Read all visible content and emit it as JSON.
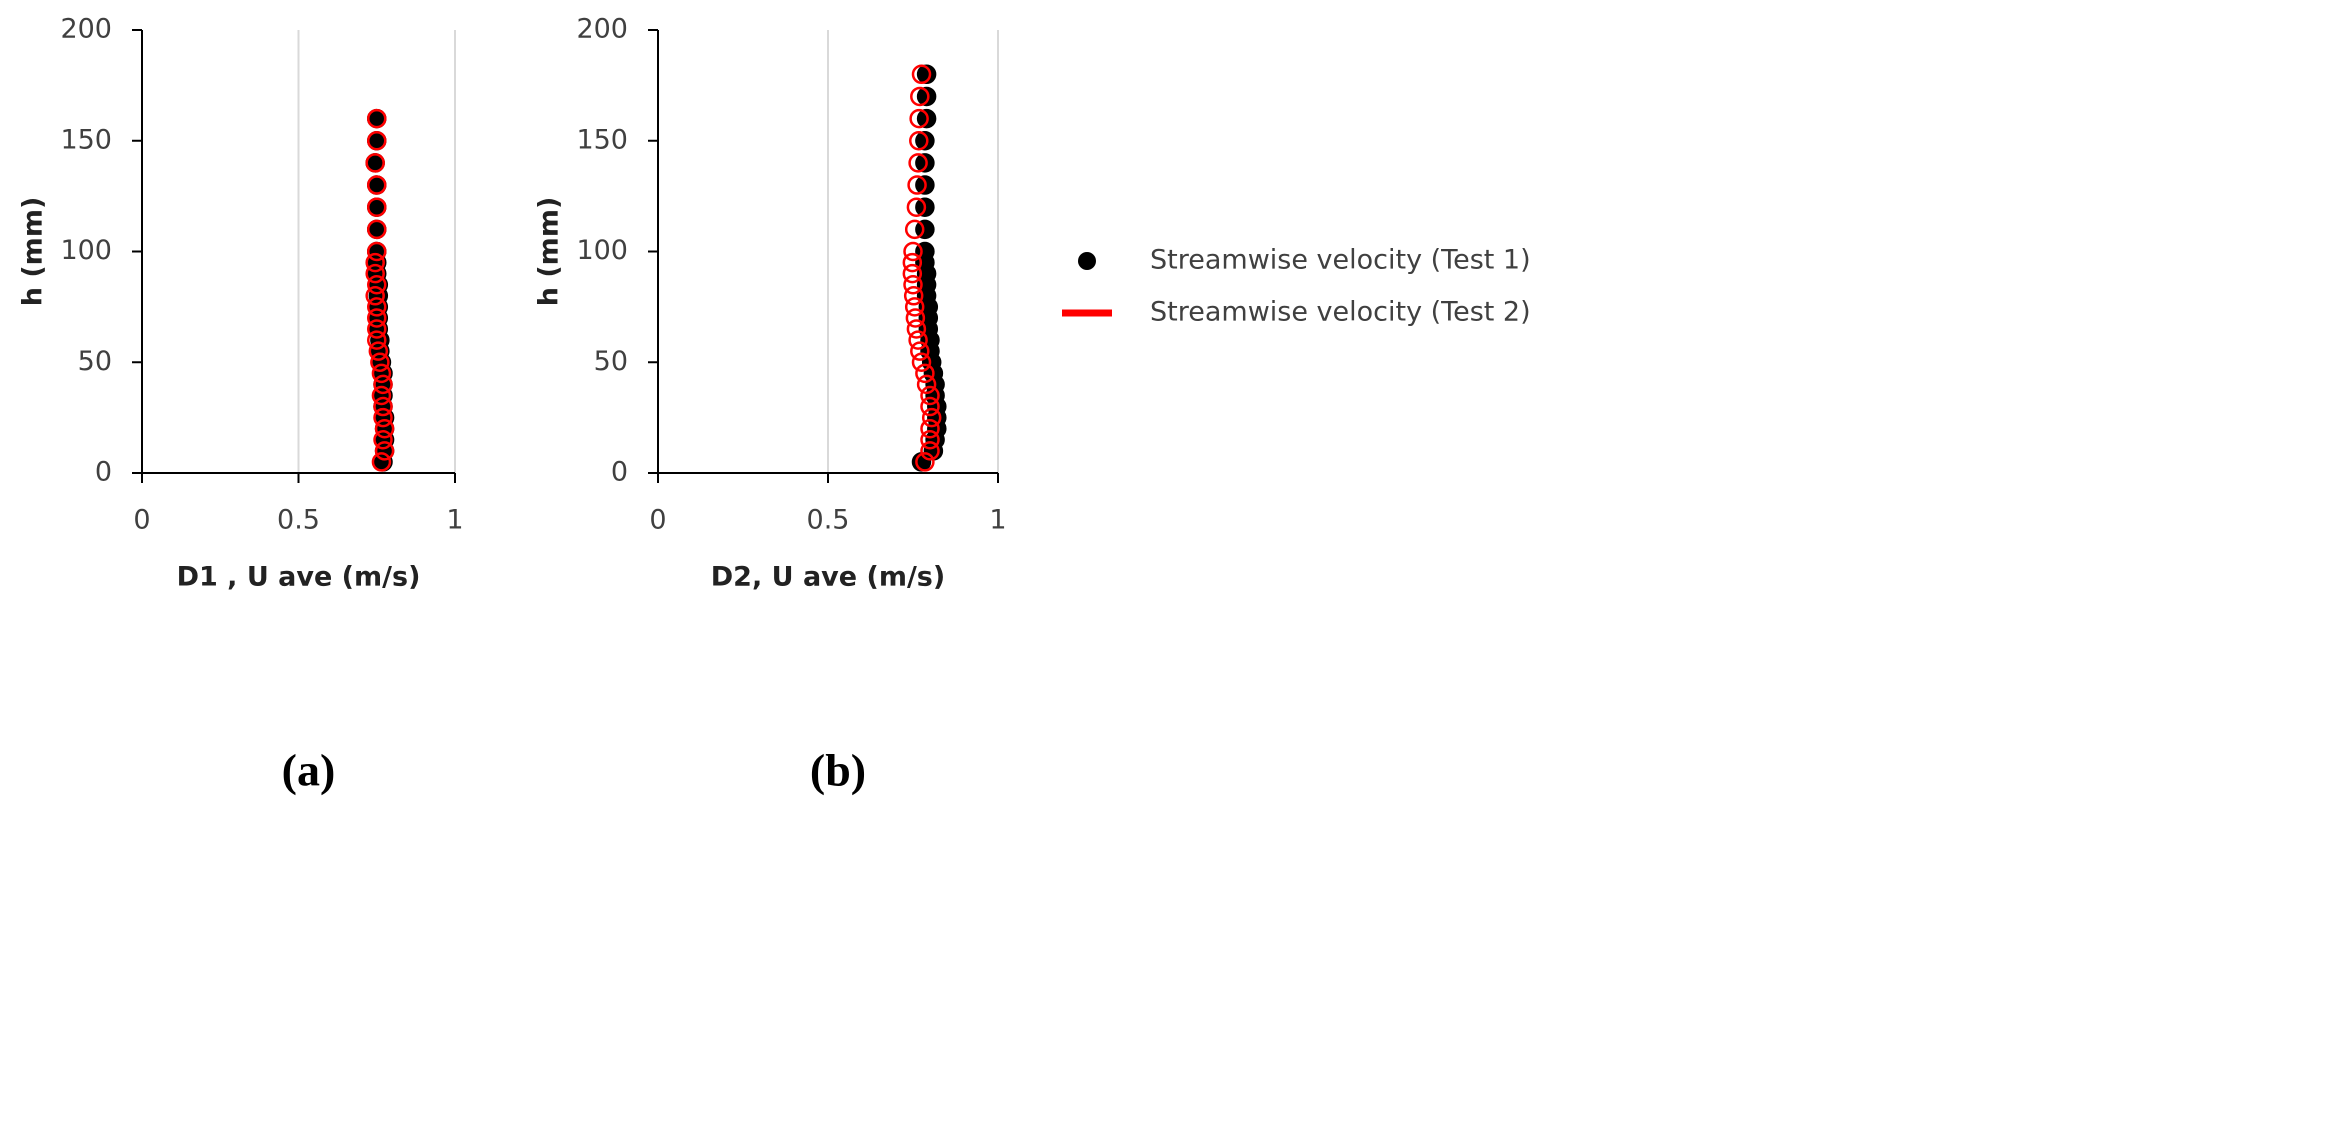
{
  "chart_data": [
    {
      "type": "scatter",
      "caption": "(a)",
      "xlabel": "D1 , U ave (m/s)",
      "ylabel": "h (mm)",
      "xlim": [
        0,
        1
      ],
      "xticks": [
        0,
        0.5,
        1
      ],
      "ylim": [
        0,
        200
      ],
      "yticks": [
        0,
        50,
        100,
        150,
        200
      ],
      "grid": "x",
      "series": [
        {
          "name": "Streamwise velocity (Test 1)",
          "color": "#000000",
          "filled": true,
          "x": [
            0.77,
            0.775,
            0.775,
            0.775,
            0.775,
            0.77,
            0.77,
            0.77,
            0.77,
            0.765,
            0.76,
            0.76,
            0.755,
            0.755,
            0.755,
            0.755,
            0.755,
            0.75,
            0.75,
            0.75,
            0.75,
            0.75,
            0.75,
            0.745,
            0.75,
            0.75
          ],
          "values": [
            5,
            10,
            15,
            20,
            25,
            30,
            35,
            40,
            45,
            50,
            55,
            60,
            65,
            70,
            75,
            80,
            85,
            90,
            95,
            100,
            110,
            120,
            130,
            140,
            150,
            160
          ]
        },
        {
          "name": "Streamwise velocity (Test 2)",
          "color": "#ff0000",
          "filled": false,
          "x": [
            0.765,
            0.775,
            0.77,
            0.775,
            0.77,
            0.77,
            0.765,
            0.77,
            0.765,
            0.76,
            0.755,
            0.75,
            0.75,
            0.75,
            0.75,
            0.745,
            0.75,
            0.745,
            0.745,
            0.75,
            0.75,
            0.75,
            0.75,
            0.745,
            0.75,
            0.75
          ],
          "values": [
            5,
            10,
            15,
            20,
            25,
            30,
            35,
            40,
            45,
            50,
            55,
            60,
            65,
            70,
            75,
            80,
            85,
            90,
            95,
            100,
            110,
            120,
            130,
            140,
            150,
            160
          ]
        }
      ]
    },
    {
      "type": "scatter",
      "caption": "(b)",
      "xlabel": "D2, U ave (m/s)",
      "ylabel": "h (mm)",
      "xlim": [
        0,
        1
      ],
      "xticks": [
        0,
        0.5,
        1
      ],
      "ylim": [
        0,
        200
      ],
      "yticks": [
        0,
        50,
        100,
        150,
        200
      ],
      "grid": "x",
      "series": [
        {
          "name": "Streamwise velocity (Test 1)",
          "color": "#000000",
          "filled": true,
          "x": [
            0.775,
            0.81,
            0.815,
            0.82,
            0.82,
            0.82,
            0.815,
            0.815,
            0.81,
            0.805,
            0.8,
            0.8,
            0.795,
            0.795,
            0.795,
            0.79,
            0.79,
            0.79,
            0.785,
            0.785,
            0.785,
            0.785,
            0.785,
            0.785,
            0.785,
            0.79,
            0.79,
            0.79
          ],
          "values": [
            5,
            10,
            15,
            20,
            25,
            30,
            35,
            40,
            45,
            50,
            55,
            60,
            65,
            70,
            75,
            80,
            85,
            90,
            95,
            100,
            110,
            120,
            130,
            140,
            150,
            160,
            170,
            180
          ]
        },
        {
          "name": "Streamwise velocity (Test 2)",
          "color": "#ff0000",
          "filled": false,
          "x": [
            0.785,
            0.8,
            0.8,
            0.8,
            0.805,
            0.8,
            0.8,
            0.79,
            0.785,
            0.775,
            0.77,
            0.765,
            0.76,
            0.757,
            0.755,
            0.752,
            0.75,
            0.748,
            0.748,
            0.75,
            0.755,
            0.76,
            0.762,
            0.765,
            0.767,
            0.768,
            0.77,
            0.775
          ],
          "values": [
            5,
            10,
            15,
            20,
            25,
            30,
            35,
            40,
            45,
            50,
            55,
            60,
            65,
            70,
            75,
            80,
            85,
            90,
            95,
            100,
            110,
            120,
            130,
            140,
            150,
            160,
            170,
            180
          ]
        }
      ]
    }
  ]
}
